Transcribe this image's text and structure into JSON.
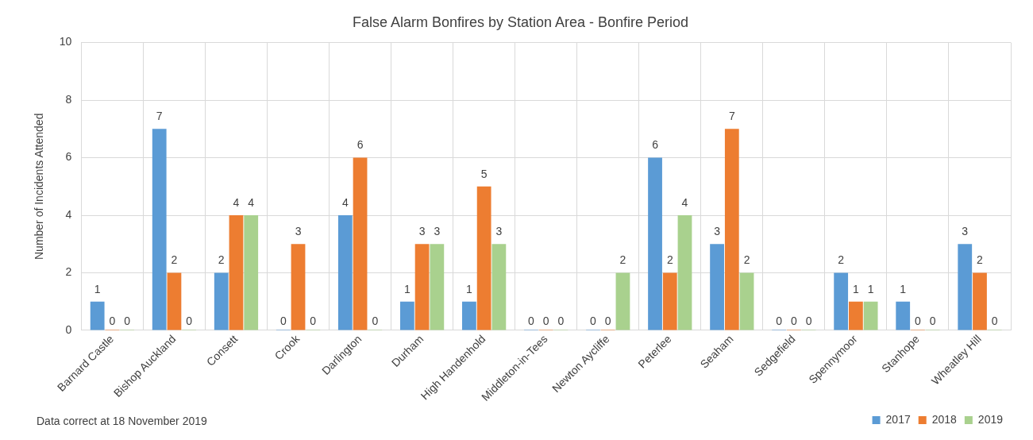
{
  "chart_data": {
    "type": "bar",
    "title": "False Alarm Bonfires by Station Area - Bonfire Period",
    "ylabel": "Number of Incidents Attended",
    "categories": [
      "Barnard Castle",
      "Bishop Auckland",
      "Consett",
      "Crook",
      "Darlington",
      "Durham",
      "High Handenhold",
      "Middleton-in-Tees",
      "Newton Aycliffe",
      "Peterlee",
      "Seaham",
      "Sedgefield",
      "Spennymoor",
      "Stanhope",
      "Wheatley Hill"
    ],
    "series": [
      {
        "name": "2017",
        "color": "#5b9bd5",
        "values": [
          1,
          7,
          2,
          0,
          4,
          1,
          1,
          0,
          0,
          6,
          3,
          0,
          2,
          1,
          3
        ]
      },
      {
        "name": "2018",
        "color": "#ed7d31",
        "values": [
          0,
          2,
          4,
          3,
          6,
          3,
          5,
          0,
          0,
          2,
          7,
          0,
          1,
          0,
          2
        ]
      },
      {
        "name": "2019",
        "color": "#a9d18e",
        "values": [
          0,
          0,
          4,
          0,
          0,
          3,
          3,
          0,
          2,
          4,
          2,
          0,
          1,
          0,
          0
        ]
      }
    ],
    "ylim": [
      0,
      10
    ],
    "yticks": [
      0,
      2,
      4,
      6,
      8,
      10
    ],
    "grid": true,
    "legend": "bottom right",
    "data_labels": true,
    "annotations": [
      "Data correct at 18 November 2019"
    ]
  }
}
